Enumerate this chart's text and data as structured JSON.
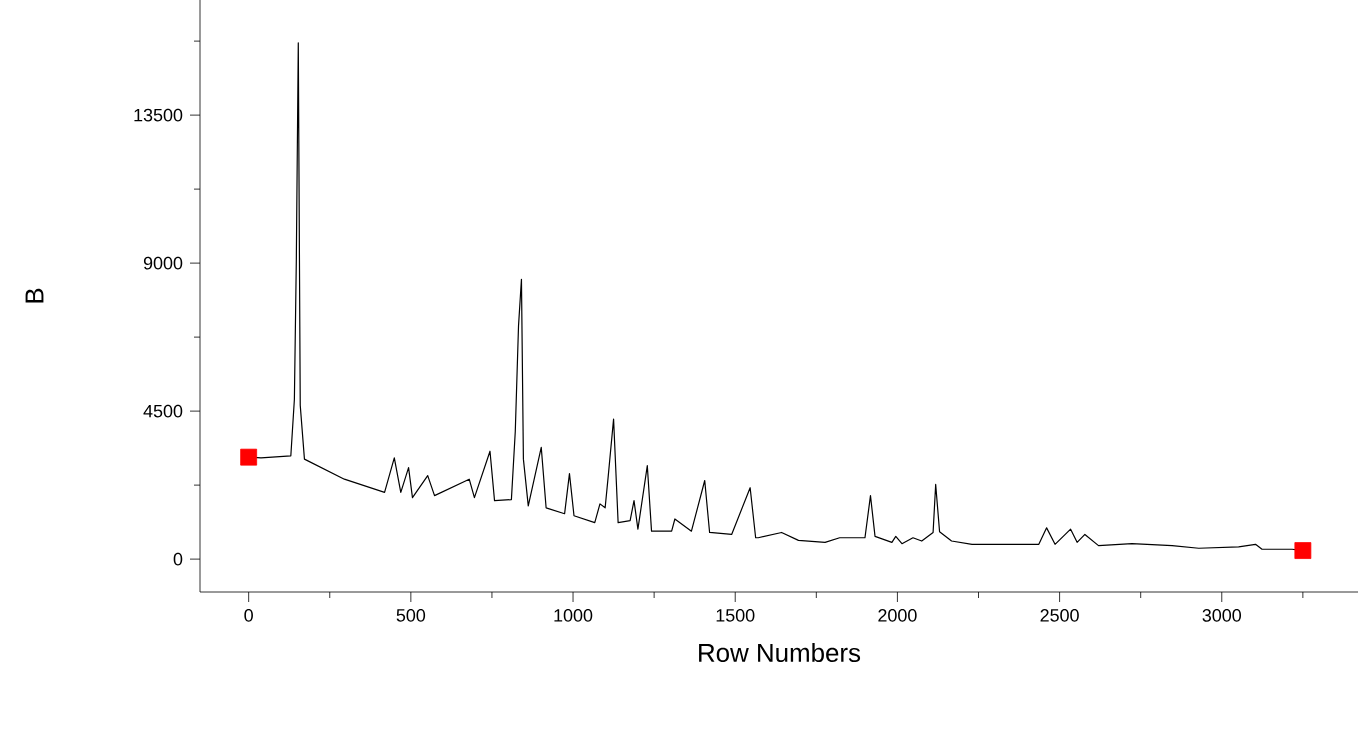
{
  "chart_data": {
    "type": "line",
    "xlabel": "Row Numbers",
    "ylabel": "B",
    "xlim": [
      -150,
      3420
    ],
    "ylim": [
      -1000,
      17000
    ],
    "xticks": [
      0,
      {
        "value": 250,
        "label": null
      },
      500,
      {
        "value": 750,
        "label": null
      },
      1000,
      {
        "value": 1250,
        "label": null
      },
      1500,
      {
        "value": 1750,
        "label": null
      },
      2000,
      {
        "value": 2250,
        "label": null
      },
      2500,
      {
        "value": 2750,
        "label": null
      },
      3000,
      {
        "value": 3250,
        "label": null
      }
    ],
    "yticks": [
      0,
      {
        "value": 2250,
        "label": null
      },
      4500,
      {
        "value": 6750,
        "label": null
      },
      9000,
      {
        "value": 11250,
        "label": null
      },
      13500,
      {
        "value": 15750,
        "label": null
      }
    ],
    "grid": false,
    "series": [
      {
        "color": "#000000",
        "marker": "none",
        "line_style": "solid",
        "x": [
          0,
          38,
          130,
          141,
          147,
          153,
          159,
          172,
          295,
          419,
          449,
          469,
          493,
          505,
          552,
          573,
          680,
          696,
          744,
          758,
          810,
          822,
          832,
          841,
          847,
          862,
          902,
          917,
          974,
          989,
          1003,
          1067,
          1083,
          1099,
          1108,
          1125,
          1139,
          1176,
          1188,
          1200,
          1229,
          1242,
          1304,
          1314,
          1365,
          1406,
          1421,
          1489,
          1546,
          1563,
          1571,
          1643,
          1695,
          1777,
          1822,
          1900,
          1917,
          1931,
          1983,
          1995,
          2014,
          2048,
          2075,
          2110,
          2118,
          2130,
          2167,
          2230,
          2353,
          2436,
          2460,
          2486,
          2534,
          2554,
          2578,
          2620,
          2723,
          2847,
          2929,
          3052,
          3104,
          3124,
          3217,
          3250
        ],
        "values": [
          3100,
          3080,
          3140,
          4860,
          9120,
          15700,
          4680,
          3040,
          2430,
          2030,
          3080,
          2030,
          2780,
          1870,
          2540,
          1930,
          2430,
          1870,
          3280,
          1780,
          1810,
          3890,
          7100,
          8510,
          3040,
          1620,
          3400,
          1560,
          1380,
          2600,
          1320,
          1110,
          1680,
          1560,
          2470,
          4260,
          1110,
          1170,
          1780,
          910,
          2840,
          850,
          850,
          1220,
          850,
          2390,
          810,
          750,
          2170,
          650,
          650,
          810,
          570,
          510,
          650,
          650,
          1930,
          690,
          510,
          690,
          470,
          650,
          550,
          810,
          2270,
          830,
          550,
          450,
          450,
          450,
          950,
          450,
          910,
          510,
          750,
          410,
          470,
          410,
          330,
          370,
          450,
          300,
          300,
          260
        ]
      },
      {
        "type": "scatter",
        "color": "#ff0000",
        "marker": "square",
        "x": [
          0,
          3250
        ],
        "values": [
          3100,
          260
        ]
      }
    ]
  }
}
